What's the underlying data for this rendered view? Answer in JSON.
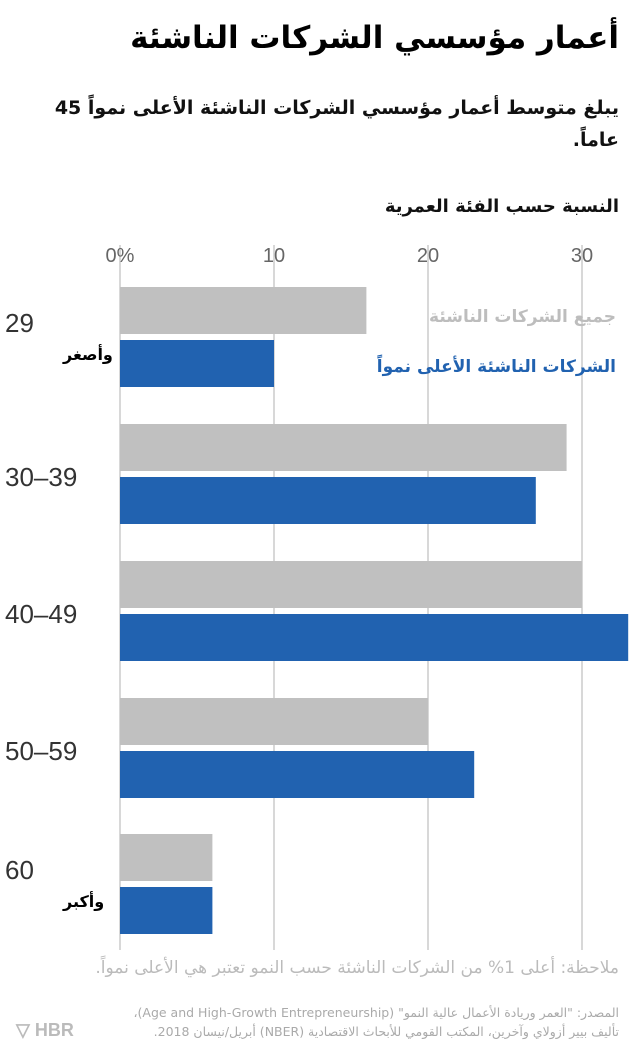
{
  "header": {
    "title": "أعمار مؤسسي الشركات الناشئة",
    "subtitle": "يبلغ متوسط أعمار مؤسسي الشركات الناشئة الأعلى نمواً 45 عاماً."
  },
  "chart_data": {
    "type": "bar",
    "orientation": "horizontal",
    "xlabel": "النسبة حسب الفئة العمرية",
    "xlim": [
      0,
      33
    ],
    "xticks": [
      {
        "value": 0,
        "label": "0%"
      },
      {
        "value": 10,
        "label": "10"
      },
      {
        "value": 20,
        "label": "20"
      },
      {
        "value": 30,
        "label": "30"
      }
    ],
    "grid": true,
    "categories": [
      {
        "num": "29",
        "word": "وأصغر"
      },
      {
        "num": "30–39",
        "word": ""
      },
      {
        "num": "40–49",
        "word": ""
      },
      {
        "num": "50–59",
        "word": ""
      },
      {
        "num": "60",
        "word": "وأكبر"
      }
    ],
    "series": [
      {
        "name": "جميع الشركات الناشئة",
        "color": "#c0c0c0",
        "label_color": "#bdbdbd",
        "values": [
          16,
          29,
          30,
          20,
          6
        ]
      },
      {
        "name": "الشركات الناشئة الأعلى نمواً",
        "color": "#2162b0",
        "label_color": "#2162b0",
        "values": [
          10,
          27,
          33,
          23,
          6
        ]
      }
    ],
    "legend": "inline-top"
  },
  "footer": {
    "note": "ملاحظة:  أعلى 1% من الشركات الناشئة حسب النمو تعتبر هي الأعلى نمواً.",
    "source_line1": "المصدر: \"العمر وريادة الأعمال عالية النمو\" (Age and High-Growth Entrepreneurship)،",
    "source_line2": "تأليف بيير أزولاي  وآخرين، المكتب القومي للأبحاث الاقتصادية (NBER) أبريل/نيسان 2018.",
    "logo": "HBR"
  }
}
